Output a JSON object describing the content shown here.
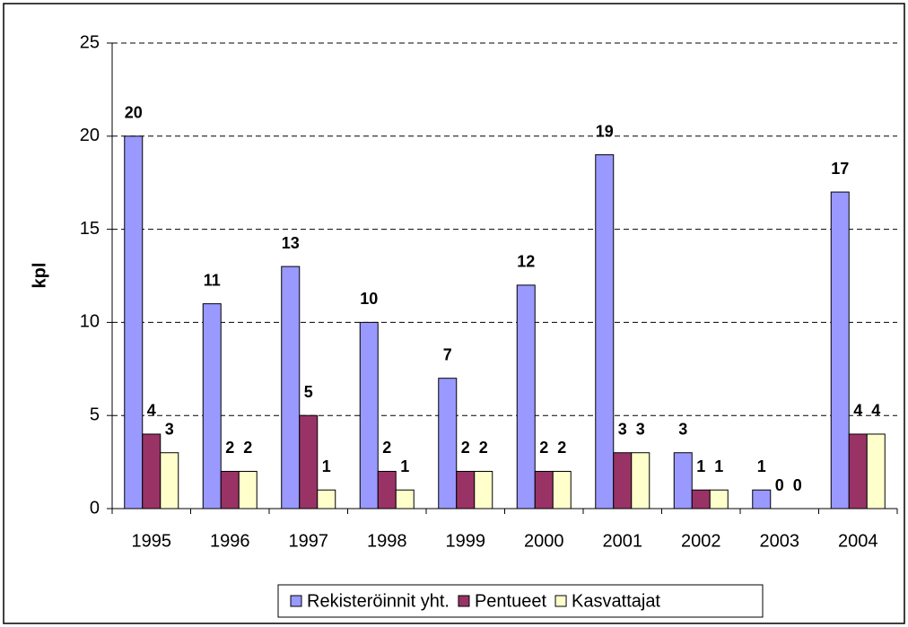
{
  "chart_data": {
    "type": "bar",
    "y_label": "kpl",
    "categories": [
      "1995",
      "1996",
      "1997",
      "1998",
      "1999",
      "2000",
      "2001",
      "2002",
      "2003",
      "2004"
    ],
    "series": [
      {
        "name": "Rekisteröinnit yht.",
        "color": "#9999ff",
        "values": [
          20,
          11,
          13,
          10,
          7,
          12,
          19,
          3,
          1,
          17
        ]
      },
      {
        "name": "Pentueet",
        "color": "#993366",
        "values": [
          4,
          2,
          5,
          2,
          2,
          2,
          3,
          1,
          0,
          4
        ]
      },
      {
        "name": "Kasvattajat",
        "color": "#ffffcc",
        "values": [
          3,
          2,
          1,
          1,
          2,
          2,
          3,
          1,
          0,
          4
        ]
      }
    ],
    "ylim": [
      0,
      25
    ],
    "yticks": [
      0,
      5,
      10,
      15,
      20,
      25
    ],
    "grid": true,
    "legend": "bottom"
  }
}
